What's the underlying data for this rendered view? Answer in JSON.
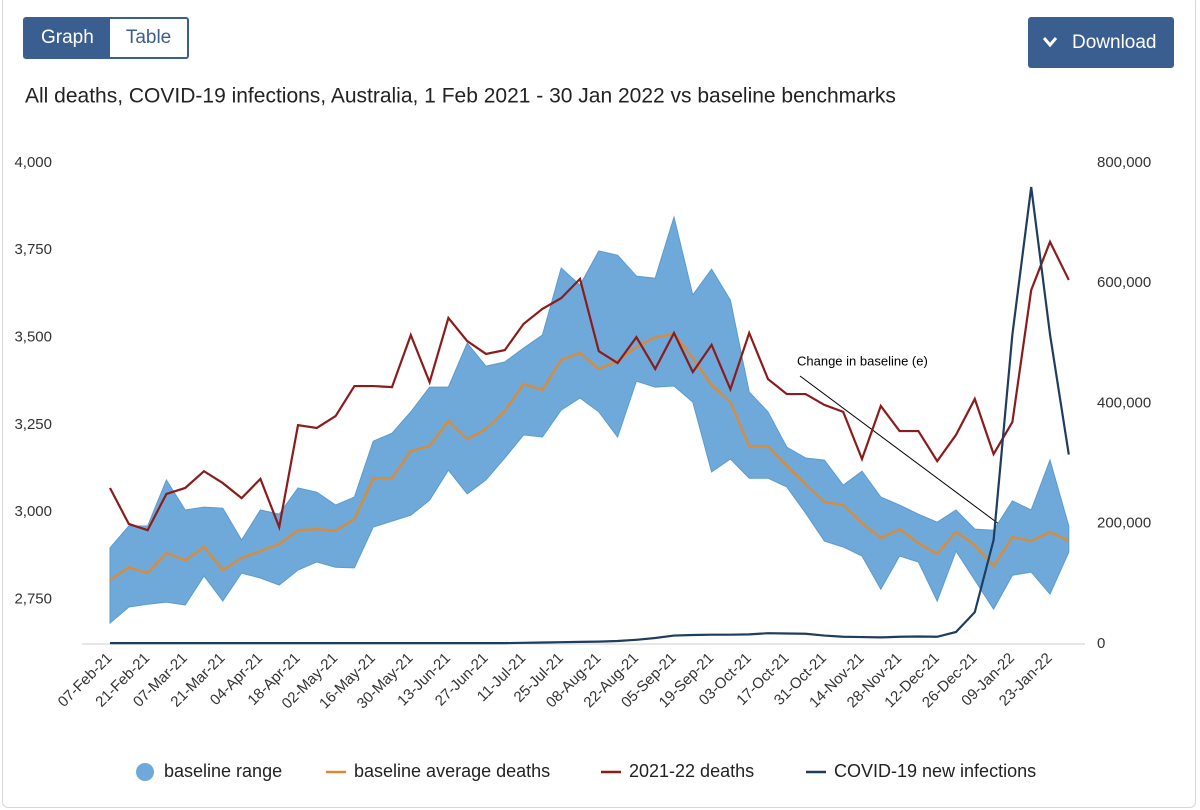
{
  "ui": {
    "tabs": [
      "Graph",
      "Table"
    ],
    "download": "Download"
  },
  "chart_data": {
    "type": "line",
    "title": "All deaths, COVID-19 infections, Australia, 1 Feb 2021 - 30 Jan 2022 vs baseline benchmarks",
    "annotations": [
      {
        "text": "Change in baseline (e)"
      }
    ],
    "categories": [
      "07-Feb-21",
      null,
      "21-Feb-21",
      null,
      "07-Mar-21",
      null,
      "21-Mar-21",
      null,
      "04-Apr-21",
      null,
      "18-Apr-21",
      null,
      "02-May-21",
      null,
      "16-May-21",
      null,
      "30-May-21",
      null,
      "13-Jun-21",
      null,
      "27-Jun-21",
      null,
      "11-Jul-21",
      null,
      "25-Jul-21",
      null,
      "08-Aug-21",
      null,
      "22-Aug-21",
      null,
      "05-Sep-21",
      null,
      "19-Sep-21",
      null,
      "03-Oct-21",
      null,
      "17-Oct-21",
      null,
      "31-Oct-21",
      null,
      "14-Nov-21",
      null,
      "28-Nov-21",
      null,
      "12-Dec-21",
      null,
      "26-Dec-21",
      null,
      "09-Jan-22",
      null,
      "23-Jan-22",
      null
    ],
    "ylim": [
      2622,
      4000
    ],
    "yticks": [
      {
        "value": 2750,
        "label": "2,750"
      },
      {
        "value": 3000,
        "label": "3,000"
      },
      {
        "value": 3250,
        "label": "3,250"
      },
      {
        "value": 3500,
        "label": "3,500"
      },
      {
        "value": 3750,
        "label": "3,750"
      },
      {
        "value": 4000,
        "label": "4,000"
      }
    ],
    "y2lim": [
      0,
      800000
    ],
    "y2ticks": [
      0,
      {
        "value": 200000,
        "label": "200,000"
      },
      {
        "value": 400000,
        "label": "400,000"
      },
      {
        "value": 600000,
        "label": "600,000"
      },
      {
        "value": 800000,
        "label": "800,000"
      }
    ],
    "grid": false,
    "legend": "bottom",
    "range": {
      "name": "baseline range",
      "color": "#6fa9d9",
      "upper": [
        2897,
        2960,
        2960,
        3092,
        3006,
        3014,
        3011,
        2920,
        3006,
        2994,
        3069,
        3057,
        3020,
        3043,
        3203,
        3226,
        3287,
        3358,
        3358,
        3484,
        3418,
        3430,
        3470,
        3507,
        3699,
        3650,
        3748,
        3736,
        3676,
        3670,
        3845,
        3622,
        3696,
        3607,
        3344,
        3287,
        3186,
        3155,
        3149,
        3077,
        3117,
        3043,
        3020,
        2994,
        2971,
        3006,
        2951,
        2948,
        3032,
        3006,
        3149,
        2960
      ],
      "lower": [
        2682,
        2728,
        2736,
        2742,
        2734,
        2817,
        2745,
        2825,
        2811,
        2791,
        2834,
        2857,
        2842,
        2840,
        2957,
        2974,
        2991,
        3034,
        3120,
        3052,
        3092,
        3155,
        3221,
        3215,
        3292,
        3327,
        3287,
        3215,
        3375,
        3358,
        3361,
        3315,
        3115,
        3152,
        3097,
        3097,
        3072,
        2997,
        2917,
        2900,
        2874,
        2779,
        2874,
        2857,
        2745,
        2888,
        2805,
        2722,
        2819,
        2828,
        2765,
        2885
      ]
    },
    "series": [
      {
        "name": "baseline average deaths",
        "color": "#e0892f",
        "values": [
          2805,
          2842,
          2825,
          2883,
          2862,
          2900,
          2834,
          2868,
          2888,
          2908,
          2948,
          2951,
          2946,
          2980,
          3097,
          3097,
          3175,
          3189,
          3261,
          3209,
          3238,
          3289,
          3367,
          3350,
          3436,
          3456,
          3410,
          3433,
          3473,
          3501,
          3510,
          3441,
          3364,
          3315,
          3189,
          3189,
          3132,
          3080,
          3029,
          3020,
          2968,
          2926,
          2951,
          2911,
          2880,
          2943,
          2905,
          2845,
          2928,
          2917,
          2943,
          2917
        ]
      },
      {
        "name": "2021-22 deaths",
        "color": "#8b1c1c",
        "values": [
          3069,
          2966,
          2948,
          3052,
          3069,
          3117,
          3083,
          3040,
          3095,
          2957,
          3249,
          3241,
          3275,
          3361,
          3361,
          3358,
          3507,
          3372,
          3556,
          3490,
          3453,
          3464,
          3539,
          3582,
          3613,
          3668,
          3461,
          3427,
          3501,
          3410,
          3513,
          3401,
          3479,
          3352,
          3513,
          3381,
          3338,
          3338,
          3307,
          3287,
          3152,
          3304,
          3232,
          3232,
          3146,
          3221,
          3324,
          3166,
          3258,
          3636,
          3774,
          3665
        ]
      },
      {
        "name": "COVID-19 new infections",
        "color": "#1f3d5f",
        "axis": "y2",
        "values": [
          1500,
          1500,
          1500,
          1500,
          1500,
          1500,
          1500,
          1500,
          1500,
          1500,
          1500,
          1500,
          1500,
          1500,
          1500,
          1500,
          1500,
          1500,
          1500,
          1500,
          1500,
          1500,
          2000,
          2500,
          3000,
          3500,
          4000,
          5000,
          7000,
          10000,
          14000,
          15000,
          15500,
          15500,
          16000,
          18000,
          17500,
          17000,
          14000,
          12000,
          11500,
          11000,
          12000,
          12500,
          12000,
          20000,
          53000,
          173000,
          515000,
          760000,
          515000,
          315000
        ]
      }
    ]
  }
}
